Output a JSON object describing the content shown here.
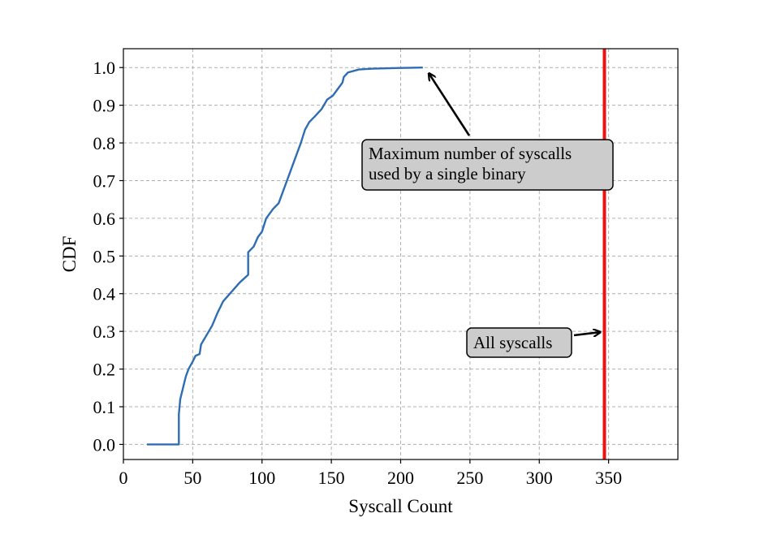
{
  "chart_data": {
    "type": "line",
    "xlabel": "Syscall Count",
    "ylabel": "CDF",
    "xlim": [
      0,
      400
    ],
    "ylim": [
      -0.04,
      1.05
    ],
    "x_ticks": [
      0,
      50,
      100,
      150,
      200,
      250,
      300,
      350
    ],
    "y_ticks": [
      0.0,
      0.1,
      0.2,
      0.3,
      0.4,
      0.5,
      0.6,
      0.7,
      0.8,
      0.9,
      1.0
    ],
    "y_tick_labels": [
      "0.0",
      "0.1",
      "0.2",
      "0.3",
      "0.4",
      "0.5",
      "0.6",
      "0.7",
      "0.8",
      "0.9",
      "1.0"
    ],
    "grid": true,
    "series": [
      {
        "color": "#2f6db3",
        "points": [
          [
            17,
            0.0
          ],
          [
            40,
            0.0
          ],
          [
            40,
            0.08
          ],
          [
            41,
            0.12
          ],
          [
            43,
            0.15
          ],
          [
            45,
            0.18
          ],
          [
            47,
            0.2
          ],
          [
            50,
            0.22
          ],
          [
            52,
            0.235
          ],
          [
            55,
            0.24
          ],
          [
            56,
            0.265
          ],
          [
            60,
            0.29
          ],
          [
            64,
            0.315
          ],
          [
            68,
            0.35
          ],
          [
            72,
            0.38
          ],
          [
            78,
            0.405
          ],
          [
            84,
            0.43
          ],
          [
            90,
            0.45
          ],
          [
            90,
            0.51
          ],
          [
            94,
            0.525
          ],
          [
            97,
            0.55
          ],
          [
            100,
            0.565
          ],
          [
            103,
            0.6
          ],
          [
            108,
            0.625
          ],
          [
            112,
            0.64
          ],
          [
            115,
            0.67
          ],
          [
            118,
            0.7
          ],
          [
            122,
            0.74
          ],
          [
            125,
            0.77
          ],
          [
            128,
            0.8
          ],
          [
            131,
            0.835
          ],
          [
            134,
            0.855
          ],
          [
            138,
            0.87
          ],
          [
            143,
            0.89
          ],
          [
            147,
            0.915
          ],
          [
            151,
            0.925
          ],
          [
            155,
            0.945
          ],
          [
            158,
            0.96
          ],
          [
            159,
            0.975
          ],
          [
            162,
            0.987
          ],
          [
            170,
            0.995
          ],
          [
            180,
            0.997
          ],
          [
            200,
            0.999
          ],
          [
            216,
            1.0
          ]
        ]
      }
    ],
    "vertical_line": {
      "x": 347,
      "color": "#ee1111"
    },
    "annotations": [
      {
        "text_lines": [
          "Maximum number of syscalls",
          "used by a single binary"
        ],
        "points_to": [
          216,
          1.0
        ]
      },
      {
        "text_lines": [
          "All syscalls"
        ],
        "points_to": [
          347,
          0.3
        ]
      }
    ]
  }
}
